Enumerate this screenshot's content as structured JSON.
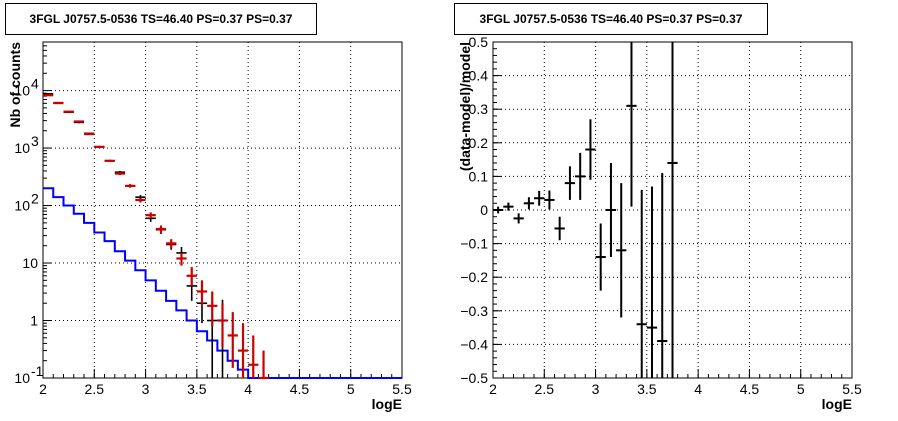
{
  "chart_data": [
    {
      "type": "line",
      "title": "3FGL J0757.5-0536 TS=46.40 PS=0.37 PS=0.37",
      "xlabel": "logE",
      "ylabel": "Nb of counts",
      "xlim": [
        2,
        5.5
      ],
      "ylim": [
        0.1,
        70000
      ],
      "yscale": "log",
      "grid": true,
      "x_ticks": [
        "2",
        "2.5",
        "3",
        "3.5",
        "4",
        "4.5",
        "5",
        "5.5"
      ],
      "y_ticks": [
        {
          "value": 0.1,
          "label": "10",
          "exp": "-1"
        },
        {
          "value": 1,
          "label": "1",
          "exp": ""
        },
        {
          "value": 10,
          "label": "10",
          "exp": ""
        },
        {
          "value": 100,
          "label": "10",
          "exp": "2"
        },
        {
          "value": 1000,
          "label": "10",
          "exp": "3"
        },
        {
          "value": 10000,
          "label": "10",
          "exp": "4"
        }
      ],
      "series": [
        {
          "kind": "histogram",
          "color": "#0000ff",
          "edges": [
            2.0,
            2.1,
            2.2,
            2.3,
            2.4,
            2.5,
            2.6,
            2.7,
            2.8,
            2.9,
            3.0,
            3.1,
            3.2,
            3.3,
            3.4,
            3.5,
            3.6,
            3.7,
            3.8,
            3.9,
            4.0,
            4.1,
            4.2,
            4.3,
            4.4,
            4.5,
            4.6,
            4.7,
            4.8,
            4.9,
            5.0,
            5.1,
            5.2,
            5.3,
            5.4,
            5.5
          ],
          "values": [
            200,
            140,
            100,
            72,
            50,
            34,
            24,
            16,
            11,
            7.5,
            5.0,
            3.3,
            2.2,
            1.5,
            1.0,
            0.65,
            0.45,
            0.3,
            0.2,
            0.14,
            0.1,
            0.1,
            0.1,
            0.1,
            0.1,
            0.1,
            0.1,
            0.1,
            0.1,
            0.1,
            0.1,
            0.1,
            0.1,
            0.1,
            0.1
          ]
        },
        {
          "kind": "errorbars",
          "color": "#000000",
          "points": [
            {
              "x": 2.05,
              "y": 8800,
              "lo": 8600,
              "hi": 9000
            },
            {
              "x": 2.15,
              "y": 6000,
              "lo": 5850,
              "hi": 6150
            },
            {
              "x": 2.25,
              "y": 4200,
              "lo": 4080,
              "hi": 4320
            },
            {
              "x": 2.35,
              "y": 2800,
              "lo": 2700,
              "hi": 2900
            },
            {
              "x": 2.45,
              "y": 1800,
              "lo": 1740,
              "hi": 1860
            },
            {
              "x": 2.55,
              "y": 1050,
              "lo": 1010,
              "hi": 1090
            },
            {
              "x": 2.65,
              "y": 600,
              "lo": 575,
              "hi": 625
            },
            {
              "x": 2.75,
              "y": 380,
              "lo": 360,
              "hi": 400
            },
            {
              "x": 2.85,
              "y": 220,
              "lo": 205,
              "hi": 235
            },
            {
              "x": 2.95,
              "y": 140,
              "lo": 128,
              "hi": 152
            },
            {
              "x": 3.05,
              "y": 60,
              "lo": 52,
              "hi": 68
            },
            {
              "x": 3.15,
              "y": 38,
              "lo": 32,
              "hi": 44
            },
            {
              "x": 3.25,
              "y": 21,
              "lo": 17,
              "hi": 25
            },
            {
              "x": 3.35,
              "y": 15,
              "lo": 11,
              "hi": 19
            },
            {
              "x": 3.45,
              "y": 4,
              "lo": 2.2,
              "hi": 6
            },
            {
              "x": 3.55,
              "y": 2,
              "lo": 0.9,
              "hi": 3.6
            },
            {
              "x": 3.65,
              "y": 1,
              "lo": 0.1,
              "hi": 2.3
            },
            {
              "x": 3.75,
              "y": 1,
              "lo": 0.1,
              "hi": 2.3
            }
          ]
        },
        {
          "kind": "errorbars",
          "color": "#cc0000",
          "points": [
            {
              "x": 2.05,
              "y": 8300,
              "lo": 8100,
              "hi": 8500
            },
            {
              "x": 2.15,
              "y": 6100,
              "lo": 5950,
              "hi": 6250
            },
            {
              "x": 2.25,
              "y": 4300,
              "lo": 4180,
              "hi": 4420
            },
            {
              "x": 2.35,
              "y": 2900,
              "lo": 2800,
              "hi": 3000
            },
            {
              "x": 2.45,
              "y": 1750,
              "lo": 1690,
              "hi": 1810
            },
            {
              "x": 2.55,
              "y": 1050,
              "lo": 1010,
              "hi": 1090
            },
            {
              "x": 2.65,
              "y": 600,
              "lo": 575,
              "hi": 625
            },
            {
              "x": 2.75,
              "y": 360,
              "lo": 340,
              "hi": 380
            },
            {
              "x": 2.85,
              "y": 220,
              "lo": 205,
              "hi": 235
            },
            {
              "x": 2.95,
              "y": 125,
              "lo": 113,
              "hi": 137
            },
            {
              "x": 3.05,
              "y": 68,
              "lo": 60,
              "hi": 76
            },
            {
              "x": 3.15,
              "y": 39,
              "lo": 33,
              "hi": 45
            },
            {
              "x": 3.25,
              "y": 22,
              "lo": 18,
              "hi": 26
            },
            {
              "x": 3.35,
              "y": 12,
              "lo": 9,
              "hi": 15
            },
            {
              "x": 3.45,
              "y": 6,
              "lo": 4,
              "hi": 8.5
            },
            {
              "x": 3.55,
              "y": 3.2,
              "lo": 1.8,
              "hi": 5
            },
            {
              "x": 3.65,
              "y": 1.8,
              "lo": 0.8,
              "hi": 3.2
            },
            {
              "x": 3.75,
              "y": 1.0,
              "lo": 0.35,
              "hi": 2.0
            },
            {
              "x": 3.85,
              "y": 0.55,
              "lo": 0.15,
              "hi": 1.4
            },
            {
              "x": 3.95,
              "y": 0.3,
              "lo": 0.1,
              "hi": 0.9
            },
            {
              "x": 4.05,
              "y": 0.17,
              "lo": 0.1,
              "hi": 0.55
            },
            {
              "x": 4.15,
              "y": 0.1,
              "lo": 0.1,
              "hi": 0.3
            }
          ]
        }
      ]
    },
    {
      "type": "scatter",
      "title": "3FGL J0757.5-0536 TS=46.40 PS=0.37 PS=0.37",
      "xlabel": "logE",
      "ylabel": "(data-model)/model",
      "xlim": [
        2,
        5.5
      ],
      "ylim": [
        -0.5,
        0.5
      ],
      "grid": true,
      "x_ticks": [
        "2",
        "2.5",
        "3",
        "3.5",
        "4",
        "4.5",
        "5",
        "5.5"
      ],
      "y_ticks": [
        "−0.5",
        "−0.4",
        "−0.3",
        "−0.2",
        "−0.1",
        "0",
        "0.1",
        "0.2",
        "0.3",
        "0.4",
        "0.5"
      ],
      "series": [
        {
          "kind": "errorbars",
          "color": "#000000",
          "points": [
            {
              "x": 2.05,
              "y": 0.0,
              "err": 0.01
            },
            {
              "x": 2.15,
              "y": 0.01,
              "err": 0.012
            },
            {
              "x": 2.25,
              "y": -0.025,
              "err": 0.015
            },
            {
              "x": 2.35,
              "y": 0.02,
              "err": 0.018
            },
            {
              "x": 2.45,
              "y": 0.035,
              "err": 0.022
            },
            {
              "x": 2.55,
              "y": 0.03,
              "err": 0.028
            },
            {
              "x": 2.65,
              "y": -0.055,
              "err": 0.035
            },
            {
              "x": 2.75,
              "y": 0.08,
              "err": 0.05
            },
            {
              "x": 2.85,
              "y": 0.1,
              "err": 0.07
            },
            {
              "x": 2.95,
              "y": 0.18,
              "err": 0.09
            },
            {
              "x": 3.05,
              "y": -0.14,
              "err": 0.1
            },
            {
              "x": 3.15,
              "y": 0.0,
              "err": 0.14
            },
            {
              "x": 3.25,
              "y": -0.12,
              "err": 0.2
            },
            {
              "x": 3.35,
              "y": 0.31,
              "err": 0.3
            },
            {
              "x": 3.45,
              "y": -0.34,
              "err": 0.4
            },
            {
              "x": 3.55,
              "y": -0.35,
              "err": 0.42
            },
            {
              "x": 3.65,
              "y": -0.39,
              "err": 0.5
            },
            {
              "x": 3.75,
              "y": 0.14,
              "err": 0.7
            }
          ]
        }
      ]
    }
  ]
}
